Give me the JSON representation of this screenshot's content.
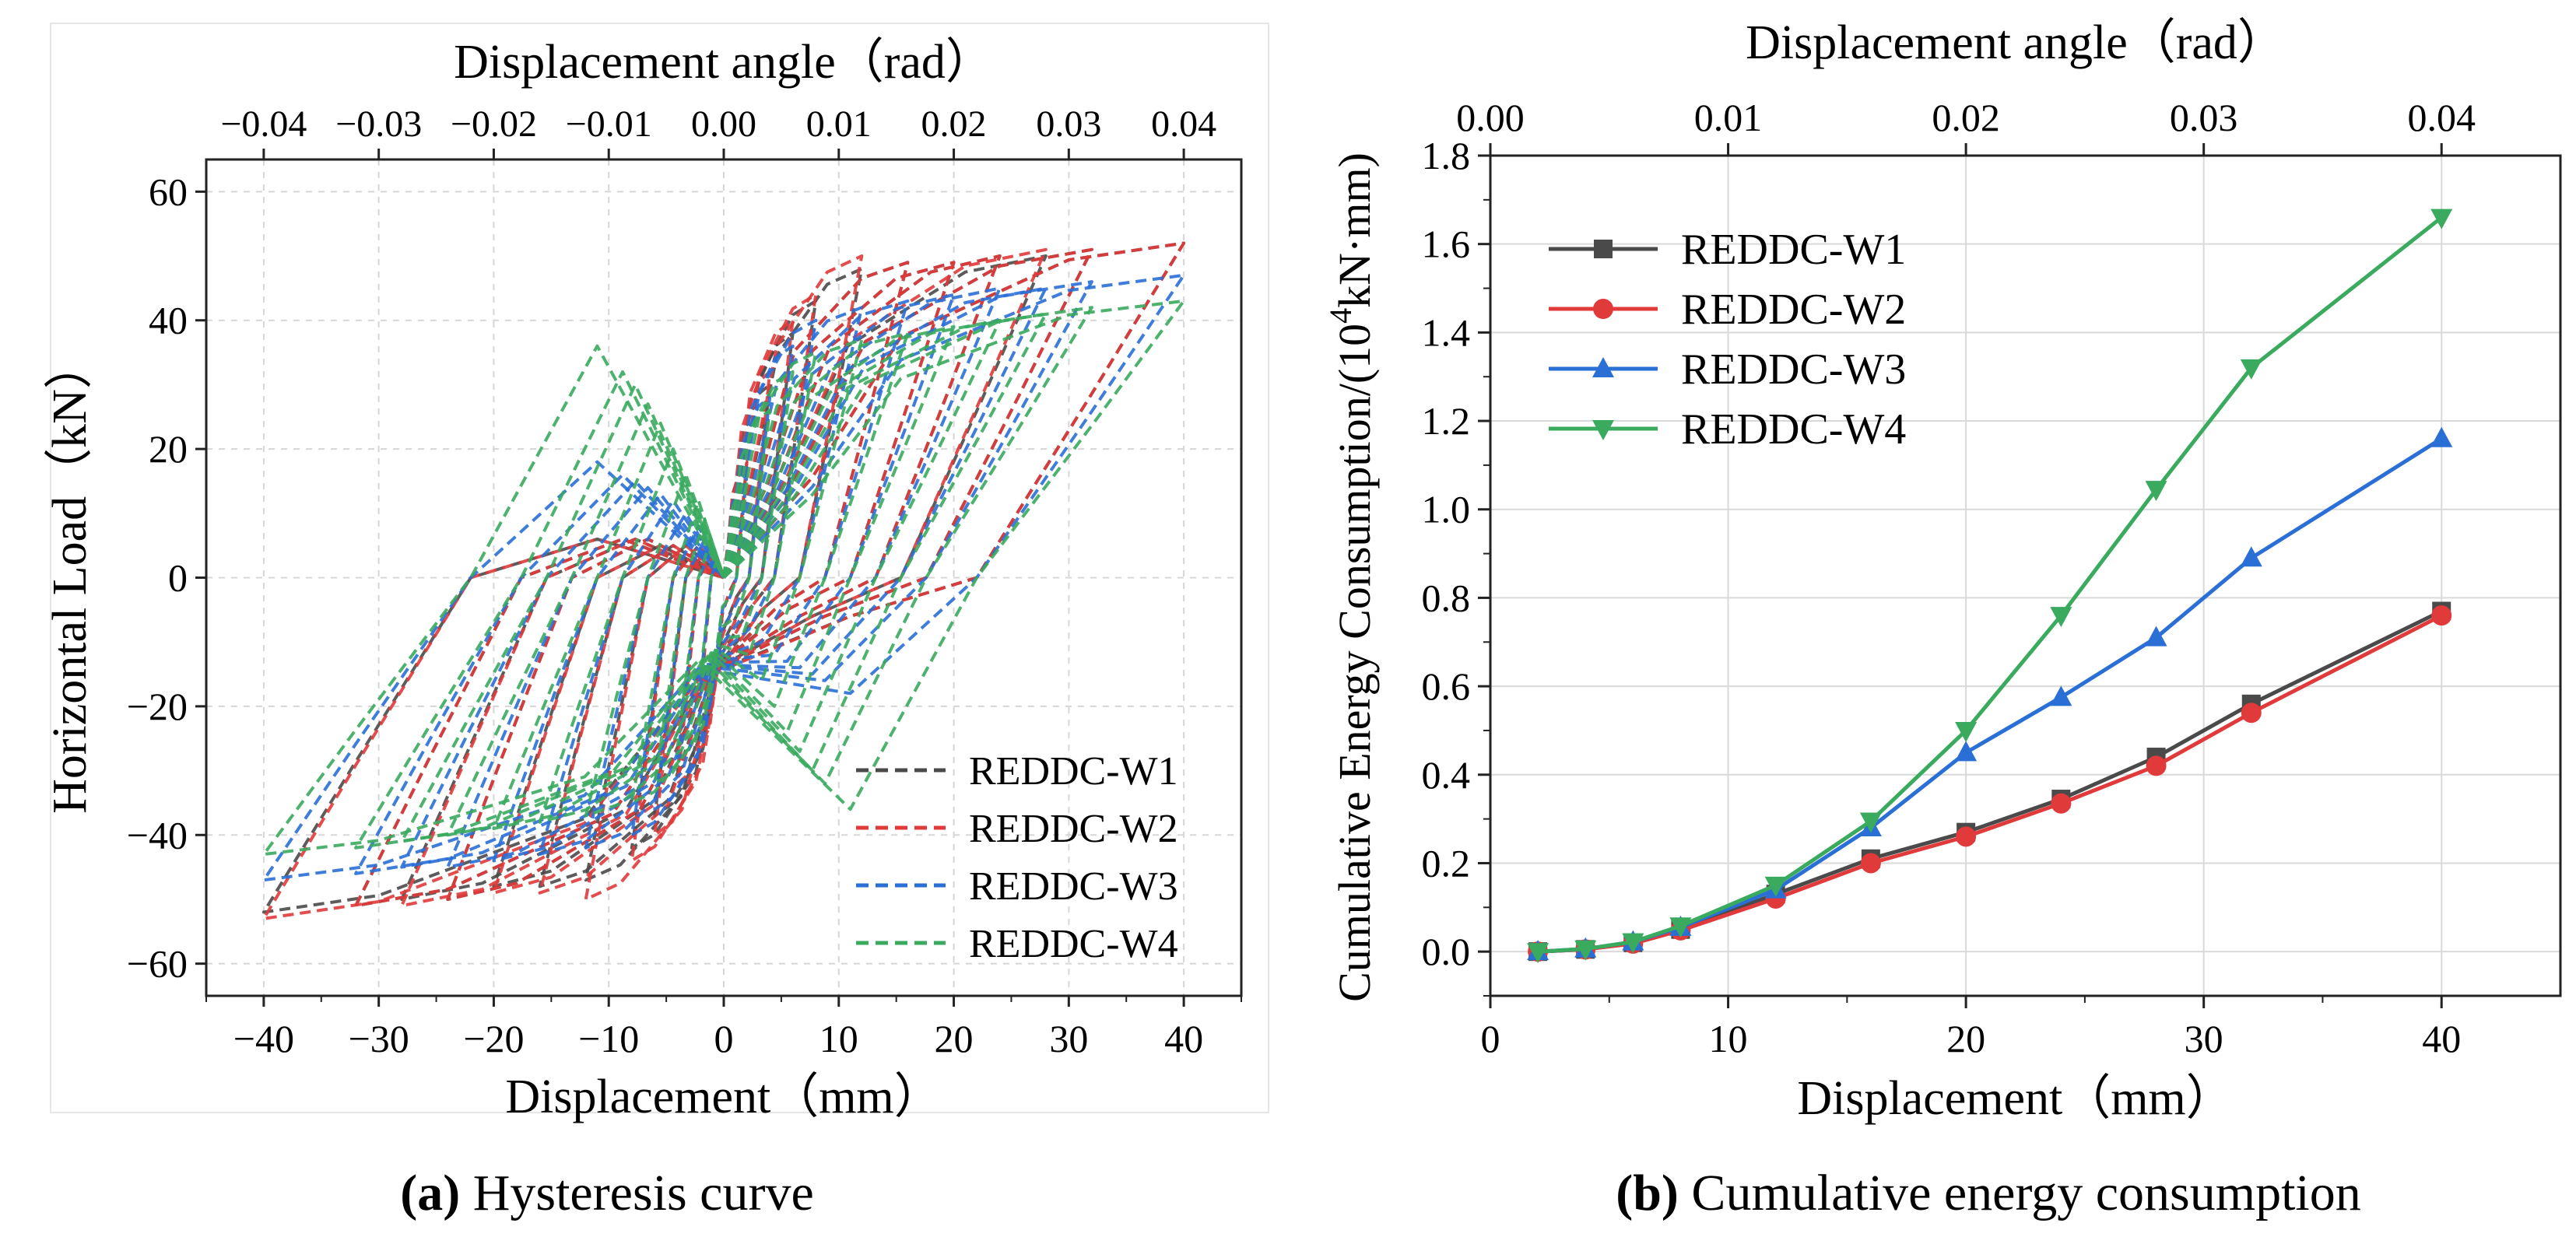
{
  "figure": {
    "panel_a_caption": {
      "letter": "(a)",
      "text": " Hysteresis curve"
    },
    "panel_b_caption": {
      "letter": "(b)",
      "text": " Cumulative energy consumption"
    }
  },
  "colors": {
    "W1": "#4a4a4a",
    "W2": "#e03a3a",
    "W3": "#2a6fd6",
    "W4": "#3aaa5e"
  },
  "chart_data": [
    {
      "id": "hysteresis",
      "type": "line",
      "title": "",
      "xlabel": "Displacement（mm）",
      "ylabel": "Horizontal Load（kN）",
      "top_xlabel": "Displacement angle（rad）",
      "xlim": [
        -45,
        45
      ],
      "ylim": [
        -65,
        65
      ],
      "top_xlim": [
        -0.045,
        0.045
      ],
      "xticks": [
        -40,
        -30,
        -20,
        -10,
        0,
        10,
        20,
        30,
        40
      ],
      "xtick_labels": [
        "−40",
        "−30",
        "−20",
        "−10",
        "0",
        "10",
        "20",
        "30",
        "40"
      ],
      "yticks": [
        -60,
        -40,
        -20,
        0,
        20,
        40,
        60
      ],
      "ytick_labels": [
        "−60",
        "−40",
        "−20",
        "0",
        "20",
        "40",
        "60"
      ],
      "top_xticks": [
        -0.04,
        -0.03,
        -0.02,
        -0.01,
        0.0,
        0.01,
        0.02,
        0.03,
        0.04
      ],
      "top_xtick_labels": [
        "−0.04",
        "−0.03",
        "−0.02",
        "−0.01",
        "0.00",
        "0.01",
        "0.02",
        "0.03",
        "0.04"
      ],
      "grid": true,
      "legend_position": "bottom-right",
      "line_style": "dashed",
      "series": [
        {
          "name": "REDDC-W1",
          "key": "W1",
          "loops": [
            {
              "d": 2,
              "pmax": 18,
              "pmin": -18,
              "pinch": 2
            },
            {
              "d": 4,
              "pmax": 30,
              "pmin": -30,
              "pinch": 3
            },
            {
              "d": 6,
              "pmax": 38,
              "pmin": -37,
              "pinch": 4
            },
            {
              "d": 8,
              "pmax": 43,
              "pmin": -42,
              "pinch": 5
            },
            {
              "d": 12,
              "pmax": 48,
              "pmin": -47,
              "pinch": 5
            },
            {
              "d": 16,
              "pmax": 49,
              "pmin": -48,
              "pinch": 5
            },
            {
              "d": 20,
              "pmax": 49,
              "pmin": -48,
              "pinch": 5
            },
            {
              "d": 24,
              "pmax": 50,
              "pmin": -50,
              "pinch": 6
            },
            {
              "d": 28,
              "pmax": 50,
              "pmin": -50,
              "pinch": 6
            },
            {
              "d": 32,
              "pmax": 51,
              "pmin": -51,
              "pinch": 6
            },
            {
              "d": 40,
              "pmax": 52,
              "pmin": -52,
              "pinch": 6
            }
          ]
        },
        {
          "name": "REDDC-W2",
          "key": "W2",
          "loops": [
            {
              "d": 2,
              "pmax": 18,
              "pmin": -18,
              "pinch": 2
            },
            {
              "d": 4,
              "pmax": 32,
              "pmin": -32,
              "pinch": 3
            },
            {
              "d": 6,
              "pmax": 40,
              "pmin": -40,
              "pinch": 4
            },
            {
              "d": 8,
              "pmax": 44,
              "pmin": -44,
              "pinch": 5
            },
            {
              "d": 12,
              "pmax": 50,
              "pmin": -50,
              "pinch": 5
            },
            {
              "d": 16,
              "pmax": 49,
              "pmin": -49,
              "pinch": 5
            },
            {
              "d": 20,
              "pmax": 49,
              "pmin": -49,
              "pinch": 5
            },
            {
              "d": 24,
              "pmax": 50,
              "pmin": -50,
              "pinch": 6
            },
            {
              "d": 28,
              "pmax": 51,
              "pmin": -51,
              "pinch": 6
            },
            {
              "d": 32,
              "pmax": 51,
              "pmin": -51,
              "pinch": 6
            },
            {
              "d": 40,
              "pmax": 52,
              "pmin": -53,
              "pinch": 6
            }
          ]
        },
        {
          "name": "REDDC-W3",
          "key": "W3",
          "loops": [
            {
              "d": 2,
              "pmax": 16,
              "pmin": -16,
              "pinch": 3
            },
            {
              "d": 4,
              "pmax": 28,
              "pmin": -28,
              "pinch": 4
            },
            {
              "d": 6,
              "pmax": 36,
              "pmin": -36,
              "pinch": 6
            },
            {
              "d": 8,
              "pmax": 40,
              "pmin": -40,
              "pinch": 8
            },
            {
              "d": 12,
              "pmax": 42,
              "pmin": -42,
              "pinch": 10
            },
            {
              "d": 16,
              "pmax": 43,
              "pmin": -43,
              "pinch": 12
            },
            {
              "d": 20,
              "pmax": 44,
              "pmin": -44,
              "pinch": 13
            },
            {
              "d": 24,
              "pmax": 45,
              "pmin": -45,
              "pinch": 14
            },
            {
              "d": 28,
              "pmax": 45,
              "pmin": -45,
              "pinch": 15
            },
            {
              "d": 32,
              "pmax": 46,
              "pmin": -46,
              "pinch": 16
            },
            {
              "d": 40,
              "pmax": 47,
              "pmin": -47,
              "pinch": 18
            }
          ]
        },
        {
          "name": "REDDC-W4",
          "key": "W4",
          "loops": [
            {
              "d": 2,
              "pmax": 15,
              "pmin": -15,
              "pinch": 3
            },
            {
              "d": 4,
              "pmax": 26,
              "pmin": -26,
              "pinch": 6
            },
            {
              "d": 6,
              "pmax": 32,
              "pmin": -32,
              "pinch": 9
            },
            {
              "d": 8,
              "pmax": 35,
              "pmin": -35,
              "pinch": 12
            },
            {
              "d": 12,
              "pmax": 37,
              "pmin": -37,
              "pinch": 16
            },
            {
              "d": 16,
              "pmax": 38,
              "pmin": -38,
              "pinch": 20
            },
            {
              "d": 20,
              "pmax": 39,
              "pmin": -39,
              "pinch": 24
            },
            {
              "d": 24,
              "pmax": 40,
              "pmin": -40,
              "pinch": 27
            },
            {
              "d": 28,
              "pmax": 41,
              "pmin": -41,
              "pinch": 30
            },
            {
              "d": 32,
              "pmax": 42,
              "pmin": -42,
              "pinch": 32
            },
            {
              "d": 40,
              "pmax": 43,
              "pmin": -43,
              "pinch": 36
            }
          ]
        }
      ]
    },
    {
      "id": "energy",
      "type": "line",
      "title": "",
      "xlabel": "Displacement（mm）",
      "ylabel_parts": [
        "Cumulative Energy Consumption/(10",
        "4",
        "kN·mm)"
      ],
      "top_xlabel": "Displacement angle（rad）",
      "xlim": [
        0,
        45
      ],
      "ylim": [
        -0.1,
        1.8
      ],
      "top_xlim": [
        0.0,
        0.045
      ],
      "xticks": [
        0,
        10,
        20,
        30,
        40
      ],
      "xtick_labels": [
        "0",
        "10",
        "20",
        "30",
        "40"
      ],
      "yticks": [
        0.0,
        0.2,
        0.4,
        0.6,
        0.8,
        1.0,
        1.2,
        1.4,
        1.6,
        1.8
      ],
      "ytick_labels": [
        "0.0",
        "0.2",
        "0.4",
        "0.6",
        "0.8",
        "1.0",
        "1.2",
        "1.4",
        "1.6",
        "1.8"
      ],
      "top_xticks": [
        0.0,
        0.01,
        0.02,
        0.03,
        0.04
      ],
      "top_xtick_labels": [
        "0.00",
        "0.01",
        "0.02",
        "0.03",
        "0.04"
      ],
      "grid": true,
      "legend_position": "top-left",
      "x": [
        2,
        4,
        6,
        8,
        12,
        16,
        20,
        24,
        28,
        32,
        40
      ],
      "series": [
        {
          "name": "REDDC-W1",
          "key": "W1",
          "marker": "square",
          "values": [
            0.0,
            0.005,
            0.02,
            0.05,
            0.13,
            0.21,
            0.27,
            0.345,
            0.44,
            0.56,
            0.77
          ]
        },
        {
          "name": "REDDC-W2",
          "key": "W2",
          "marker": "circle",
          "values": [
            0.0,
            0.005,
            0.018,
            0.048,
            0.12,
            0.2,
            0.26,
            0.335,
            0.42,
            0.54,
            0.76
          ]
        },
        {
          "name": "REDDC-W3",
          "key": "W3",
          "marker": "triangle-up",
          "values": [
            0.0,
            0.006,
            0.022,
            0.055,
            0.14,
            0.28,
            0.45,
            0.575,
            0.71,
            0.89,
            1.16
          ]
        },
        {
          "name": "REDDC-W4",
          "key": "W4",
          "marker": "triangle-down",
          "values": [
            0.0,
            0.006,
            0.022,
            0.058,
            0.15,
            0.295,
            0.5,
            0.76,
            1.045,
            1.32,
            1.66
          ]
        }
      ]
    }
  ]
}
